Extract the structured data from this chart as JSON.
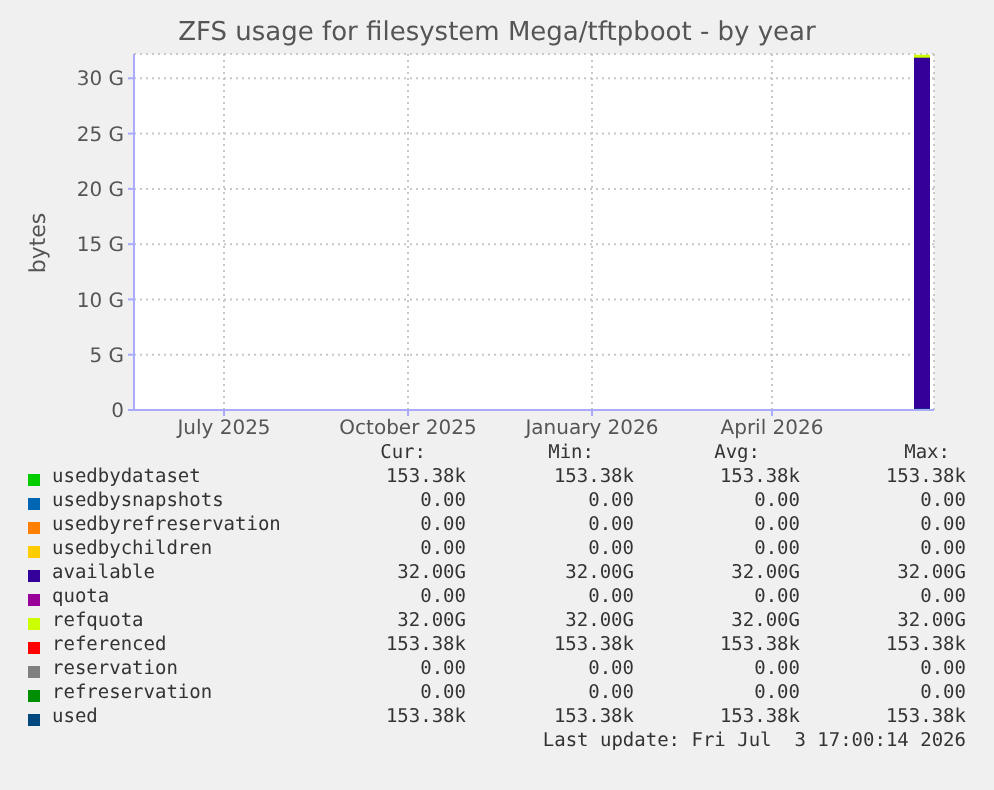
{
  "chart_data": {
    "type": "area",
    "title": "ZFS usage for filesystem Mega/tftpboot - by year",
    "ylabel": "bytes",
    "x": [
      "2026-06-25",
      "2026-07-03"
    ],
    "xlim": [
      "2025-05-31",
      "2026-07-05"
    ],
    "xticks": [
      {
        "value": "2025-07-15",
        "label": "July 2025"
      },
      {
        "value": "2025-10-15",
        "label": "October 2025"
      },
      {
        "value": "2026-01-15",
        "label": "January 2026"
      },
      {
        "value": "2026-04-15",
        "label": "April 2026"
      }
    ],
    "ylim": [
      0,
      32.2
    ],
    "yticks": [
      0,
      {
        "value": 5,
        "label": "5 G"
      },
      {
        "value": 10,
        "label": "10 G"
      },
      {
        "value": 15,
        "label": "15 G"
      },
      {
        "value": 20,
        "label": "20 G"
      },
      {
        "value": 25,
        "label": "25 G"
      },
      {
        "value": 30,
        "label": "30 G"
      }
    ],
    "series": [
      {
        "name": "usedbydataset",
        "color": "#00cc00",
        "values": [
          null,
          null
        ]
      },
      {
        "name": "usedbysnapshots",
        "color": "#0066b3",
        "values": [
          null,
          null
        ]
      },
      {
        "name": "usedbyrefreservation",
        "color": "#ff8000",
        "values": [
          null,
          null
        ]
      },
      {
        "name": "usedbychildren",
        "color": "#ffcc00",
        "values": [
          null,
          null
        ]
      },
      {
        "name": "available",
        "color": "#330099",
        "values": [
          32.0,
          32.0
        ]
      },
      {
        "name": "quota",
        "type": "line",
        "color": "#990099",
        "values": [
          null,
          null
        ]
      },
      {
        "name": "refquota",
        "type": "line",
        "color": "#ccff00",
        "values": [
          32.0,
          32.0
        ]
      },
      {
        "name": "referenced",
        "type": "line",
        "color": "#ff0000",
        "values": [
          null,
          null
        ]
      },
      {
        "name": "reservation",
        "type": "line",
        "color": "#808080",
        "values": [
          null,
          null
        ]
      },
      {
        "name": "refreservation",
        "type": "line",
        "color": "#008f00",
        "values": [
          null,
          null
        ]
      },
      {
        "name": "used",
        "type": "line",
        "color": "#00487d",
        "values": [
          0.00015338,
          0.00015338
        ]
      }
    ],
    "grid": true,
    "legend": "bottom",
    "annotations": [
      "Cur:",
      "Min:",
      "Avg:",
      "Max:",
      "153.38k",
      "153.38k",
      "153.38k",
      "153.38k",
      "0.00",
      "0.00",
      "0.00",
      "0.00",
      "0.00",
      "0.00",
      "0.00",
      "0.00",
      "0.00",
      "0.00",
      "0.00",
      "0.00",
      "32.00G",
      "32.00G",
      "32.00G",
      "32.00G",
      "0.00",
      "0.00",
      "0.00",
      "0.00",
      "32.00G",
      "32.00G",
      "32.00G",
      "32.00G",
      "153.38k",
      "153.38k",
      "153.38k",
      "153.38k",
      "0.00",
      "0.00",
      "0.00",
      "0.00",
      "0.00",
      "0.00",
      "0.00",
      "0.00",
      "153.38k",
      "153.38k",
      "153.38k",
      "153.38k",
      "Last update: Fri Jul  3 17:00:14 2026"
    ]
  }
}
